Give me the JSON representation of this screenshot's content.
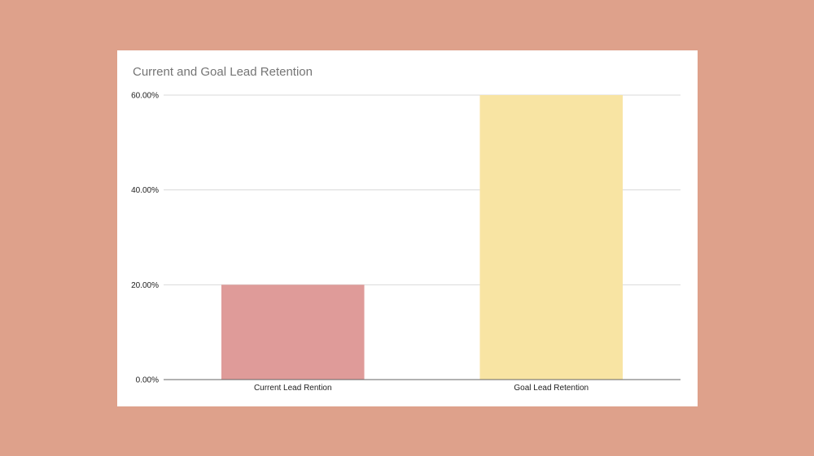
{
  "colors": {
    "background": "#dea18b",
    "card": "#ffffff",
    "gridline": "#d9d9d9",
    "baseline": "#666666",
    "title": "#757575",
    "text": "#222222"
  },
  "chart_data": {
    "type": "bar",
    "title": "Current and Goal Lead Retention",
    "xlabel": "",
    "ylabel": "",
    "categories": [
      "Current Lead Rention",
      "Goal Lead Retention"
    ],
    "values": [
      0.2,
      0.6
    ],
    "bar_colors": [
      "#df9b99",
      "#f8e4a3"
    ],
    "ylim": [
      0,
      0.6
    ],
    "yticks": [
      0,
      0.2,
      0.4,
      0.6
    ],
    "ytick_labels": [
      "0.00%",
      "20.00%",
      "40.00%",
      "60.00%"
    ],
    "grid": true,
    "legend": "none"
  }
}
